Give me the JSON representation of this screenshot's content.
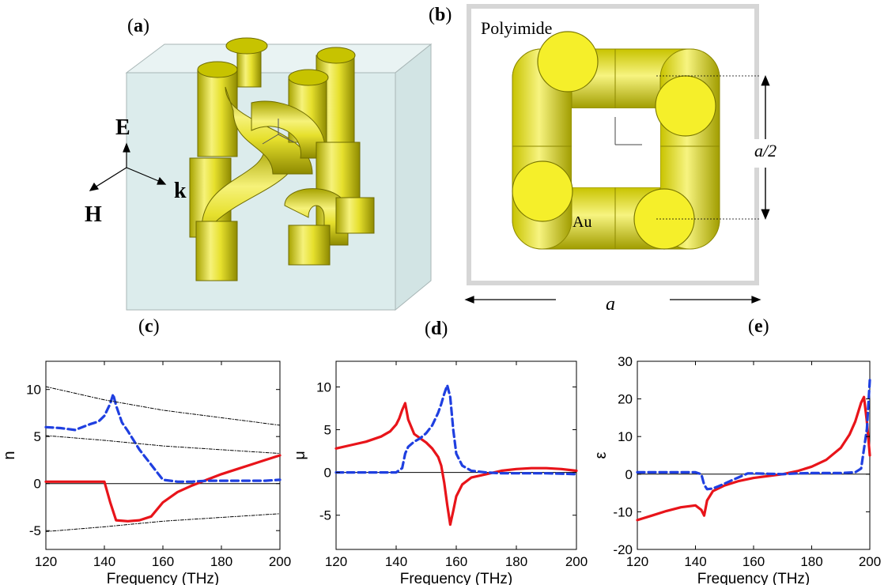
{
  "panels": {
    "a": {
      "letter": "a",
      "axes": {
        "e": "E",
        "h": "H",
        "k": "k"
      }
    },
    "b": {
      "letter": "b",
      "material_bg": "Polyimide",
      "material_metal": "Au",
      "half_period": "a/2",
      "period": "a"
    },
    "c": {
      "letter": "c"
    },
    "d": {
      "letter": "d"
    },
    "e": {
      "letter": "e"
    }
  },
  "colors": {
    "solid": "#e8141a",
    "dashed": "#1f3fe0",
    "aux": "#000000",
    "gold": "#f2ef3a",
    "box": "#dfeeee"
  },
  "chart_data": [
    {
      "type": "line",
      "title": "",
      "xlabel": "Frequency (THz)",
      "ylabel": "n",
      "xlim": [
        120,
        200
      ],
      "ylim": [
        -7,
        13
      ],
      "xticks": [
        120,
        140,
        160,
        180,
        200
      ],
      "yticks": [
        -5,
        0,
        5,
        10
      ],
      "zero_line": true,
      "series": [
        {
          "style": "solid",
          "x": [
            120,
            130,
            140,
            142,
            144,
            148,
            152,
            156,
            160,
            165,
            170,
            175,
            180,
            185,
            190,
            195,
            200
          ],
          "y": [
            0.2,
            0.2,
            0.2,
            -2.0,
            -3.9,
            -4.0,
            -3.9,
            -3.5,
            -2.0,
            -0.9,
            -0.2,
            0.4,
            1.0,
            1.5,
            2.0,
            2.5,
            3.0
          ]
        },
        {
          "style": "dashed",
          "x": [
            120,
            125,
            130,
            135,
            138,
            140,
            142,
            143,
            144,
            146,
            148,
            150,
            152,
            155,
            158,
            160,
            165,
            170,
            175,
            180,
            185,
            190,
            195,
            200
          ],
          "y": [
            6.0,
            5.9,
            5.7,
            6.3,
            6.6,
            7.2,
            8.5,
            9.5,
            8.3,
            6.5,
            5.6,
            4.6,
            3.6,
            2.4,
            1.2,
            0.4,
            0.2,
            0.2,
            0.3,
            0.3,
            0.3,
            0.3,
            0.3,
            0.4
          ]
        },
        {
          "style": "dashdot",
          "x": [
            120,
            140,
            160,
            180,
            200
          ],
          "y": [
            10.3,
            8.9,
            7.8,
            7.0,
            6.2
          ]
        },
        {
          "style": "dashdot",
          "x": [
            120,
            140,
            160,
            180,
            200
          ],
          "y": [
            5.1,
            4.6,
            4.0,
            3.6,
            3.2
          ]
        },
        {
          "style": "dashdot",
          "x": [
            120,
            140,
            160,
            180,
            200
          ],
          "y": [
            -5.1,
            -4.6,
            -4.0,
            -3.6,
            -3.2
          ]
        }
      ]
    },
    {
      "type": "line",
      "title": "",
      "xlabel": "Frequency (THz)",
      "ylabel": "μ",
      "xlim": [
        120,
        200
      ],
      "ylim": [
        -9,
        13
      ],
      "xticks": [
        120,
        140,
        160,
        180,
        200
      ],
      "yticks": [
        -5,
        0,
        5,
        10
      ],
      "zero_line": true,
      "series": [
        {
          "style": "solid",
          "x": [
            120,
            125,
            130,
            135,
            138,
            140,
            141,
            142,
            143,
            144,
            146,
            148,
            150,
            152,
            154,
            155,
            156,
            157,
            158,
            159,
            160,
            162,
            165,
            170,
            175,
            180,
            185,
            190,
            195,
            200
          ],
          "y": [
            2.8,
            3.2,
            3.6,
            4.2,
            4.8,
            5.6,
            6.3,
            7.3,
            8.1,
            6.2,
            4.5,
            4.0,
            3.5,
            2.8,
            1.8,
            0.8,
            -1.2,
            -3.8,
            -6.1,
            -4.5,
            -2.8,
            -1.4,
            -0.6,
            -0.2,
            0.2,
            0.4,
            0.5,
            0.5,
            0.4,
            0.2
          ]
        },
        {
          "style": "dashed",
          "x": [
            120,
            130,
            140,
            142,
            143,
            144,
            146,
            148,
            150,
            152,
            154,
            155,
            156,
            157,
            158,
            159,
            160,
            162,
            165,
            170,
            175,
            180,
            190,
            200
          ],
          "y": [
            0.0,
            0.0,
            0.0,
            0.5,
            2.2,
            3.0,
            3.6,
            4.0,
            4.6,
            5.5,
            7.0,
            8.0,
            9.2,
            10.2,
            8.8,
            5.0,
            2.2,
            0.8,
            0.2,
            0.0,
            -0.1,
            -0.1,
            -0.1,
            -0.2
          ]
        }
      ]
    },
    {
      "type": "line",
      "title": "",
      "xlabel": "Frequency (THz)",
      "ylabel": "ε",
      "xlim": [
        120,
        200
      ],
      "ylim": [
        -20,
        30
      ],
      "xticks": [
        120,
        140,
        160,
        180,
        200
      ],
      "yticks": [
        -20,
        -10,
        0,
        10,
        20,
        30
      ],
      "zero_line": true,
      "series": [
        {
          "style": "solid",
          "x": [
            120,
            125,
            130,
            135,
            140,
            142,
            143,
            144,
            146,
            150,
            155,
            160,
            165,
            170,
            175,
            180,
            185,
            190,
            193,
            195,
            197,
            198,
            199,
            200
          ],
          "y": [
            -12.2,
            -11.0,
            -9.8,
            -8.8,
            -8.3,
            -9.5,
            -11.0,
            -7.0,
            -4.5,
            -3.0,
            -1.8,
            -1.0,
            -0.5,
            0.0,
            0.8,
            2.0,
            3.8,
            7.0,
            10.5,
            14.0,
            19.0,
            20.5,
            14.0,
            5.0
          ]
        },
        {
          "style": "dashed",
          "x": [
            120,
            130,
            140,
            142,
            143,
            144,
            146,
            148,
            150,
            152,
            155,
            158,
            160,
            165,
            170,
            175,
            180,
            185,
            190,
            195,
            197,
            199,
            200
          ],
          "y": [
            0.5,
            0.5,
            0.5,
            0.0,
            -2.8,
            -4.0,
            -3.8,
            -3.2,
            -2.5,
            -1.8,
            -0.8,
            0.2,
            0.2,
            0.1,
            0.0,
            0.2,
            0.3,
            0.3,
            0.3,
            0.5,
            1.5,
            12.0,
            25.0
          ]
        }
      ]
    }
  ]
}
